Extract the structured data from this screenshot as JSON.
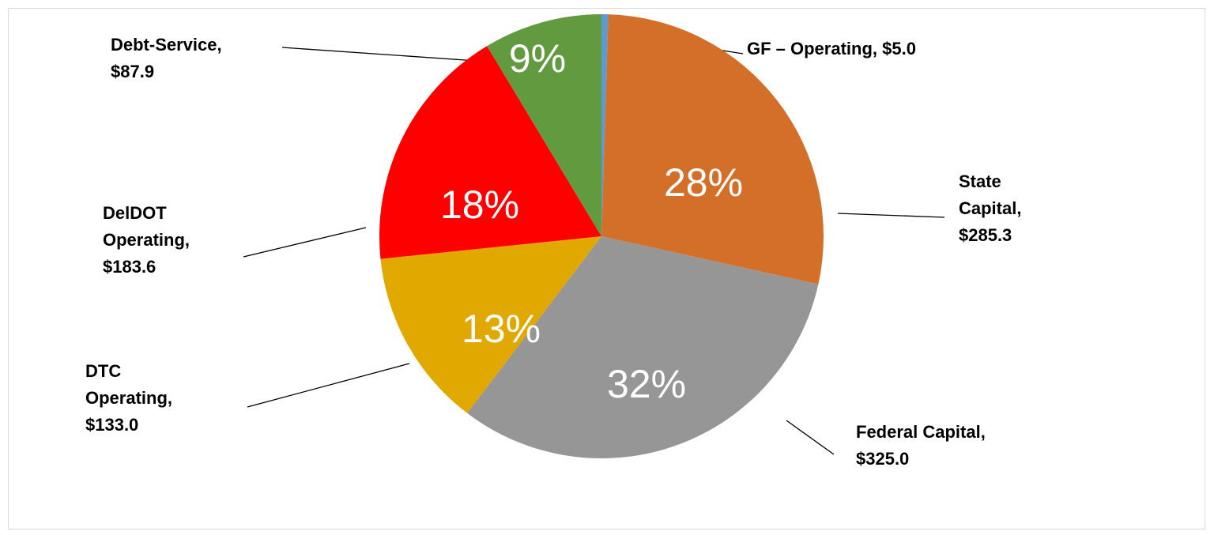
{
  "chart_data": {
    "type": "pie",
    "categories": [
      "GF – Operating,",
      "State Capital,",
      "Federal Capital,",
      "DTC Operating,",
      "DelDOT Operating,",
      "Debt-Service,"
    ],
    "values": [
      5.0,
      285.3,
      325.0,
      133.0,
      183.6,
      87.9
    ],
    "value_labels": [
      "$5.0",
      "$285.3",
      "$325.0",
      "$133.0",
      "$183.6",
      "$87.9"
    ],
    "percent_labels": [
      null,
      "28%",
      "32%",
      "13%",
      "18%",
      "9%"
    ],
    "colors": [
      "#5b9bd5",
      "#d46f2a",
      "#969696",
      "#e1a800",
      "#ff0000",
      "#629a3f"
    ]
  }
}
